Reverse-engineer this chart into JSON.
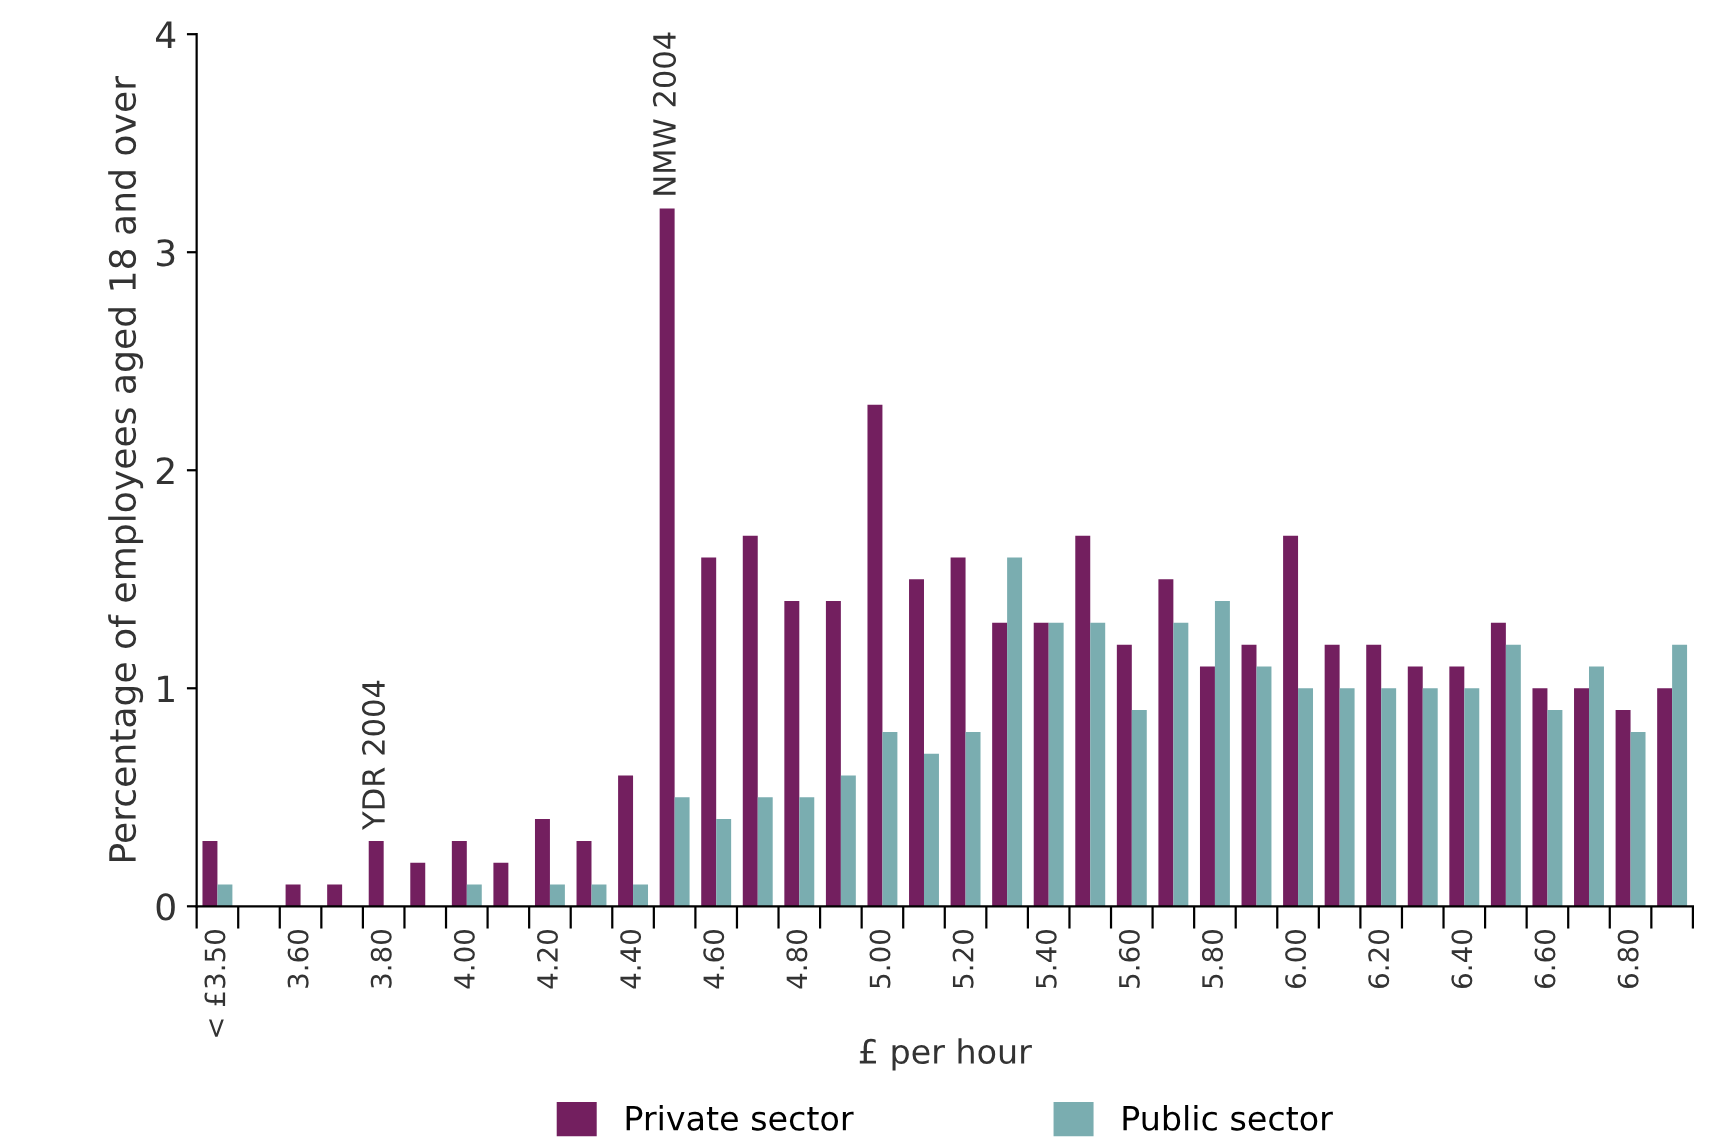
{
  "chart_data": {
    "type": "bar",
    "xlabel": "£ per hour",
    "ylabel": "Percentage of employees aged 18 and over",
    "categories": [
      "< £3.50",
      null,
      "3.60",
      null,
      "3.80",
      null,
      "4.00",
      null,
      "4.20",
      null,
      "4.40",
      null,
      "4.60",
      null,
      "4.80",
      null,
      "5.00",
      null,
      "5.20",
      null,
      "5.40",
      null,
      "5.60",
      null,
      "5.80",
      null,
      "6.00",
      null,
      "6.20",
      null,
      "6.40",
      null,
      "6.60",
      null,
      "6.80",
      null
    ],
    "series": [
      {
        "name": "Private sector",
        "color": "#731f5f",
        "values": [
          0.3,
          0,
          0.1,
          0.1,
          0.3,
          0.2,
          0.3,
          0.2,
          0.4,
          0.3,
          0.6,
          3.2,
          1.6,
          1.7,
          1.4,
          1.4,
          2.3,
          1.5,
          1.6,
          1.3,
          1.3,
          1.7,
          1.2,
          1.5,
          1.1,
          1.2,
          1.7,
          1.2,
          1.2,
          1.1,
          1.1,
          1.3,
          1.0,
          1.0,
          0.9,
          1.0
        ]
      },
      {
        "name": "Public sector",
        "color": "#7aadb0",
        "values": [
          0.1,
          0,
          0,
          0,
          0,
          0,
          0.1,
          0,
          0.1,
          0.1,
          0.1,
          0.5,
          0.4,
          0.5,
          0.5,
          0.6,
          0.8,
          0.7,
          0.8,
          1.6,
          1.3,
          1.3,
          0.9,
          1.3,
          1.4,
          1.1,
          1.0,
          1.0,
          1.0,
          1.0,
          1.0,
          1.2,
          0.9,
          1.1,
          0.8,
          1.2
        ]
      }
    ],
    "ylim": [
      0,
      4
    ],
    "yticks": [
      0,
      1,
      2,
      3,
      4
    ],
    "grid": false,
    "legend": "bottom",
    "annotations": [
      {
        "text": "YDR 2004",
        "x": "3.80",
        "y": 0.3
      },
      {
        "text": "NMW 2004",
        "y": 3.2
      }
    ]
  }
}
